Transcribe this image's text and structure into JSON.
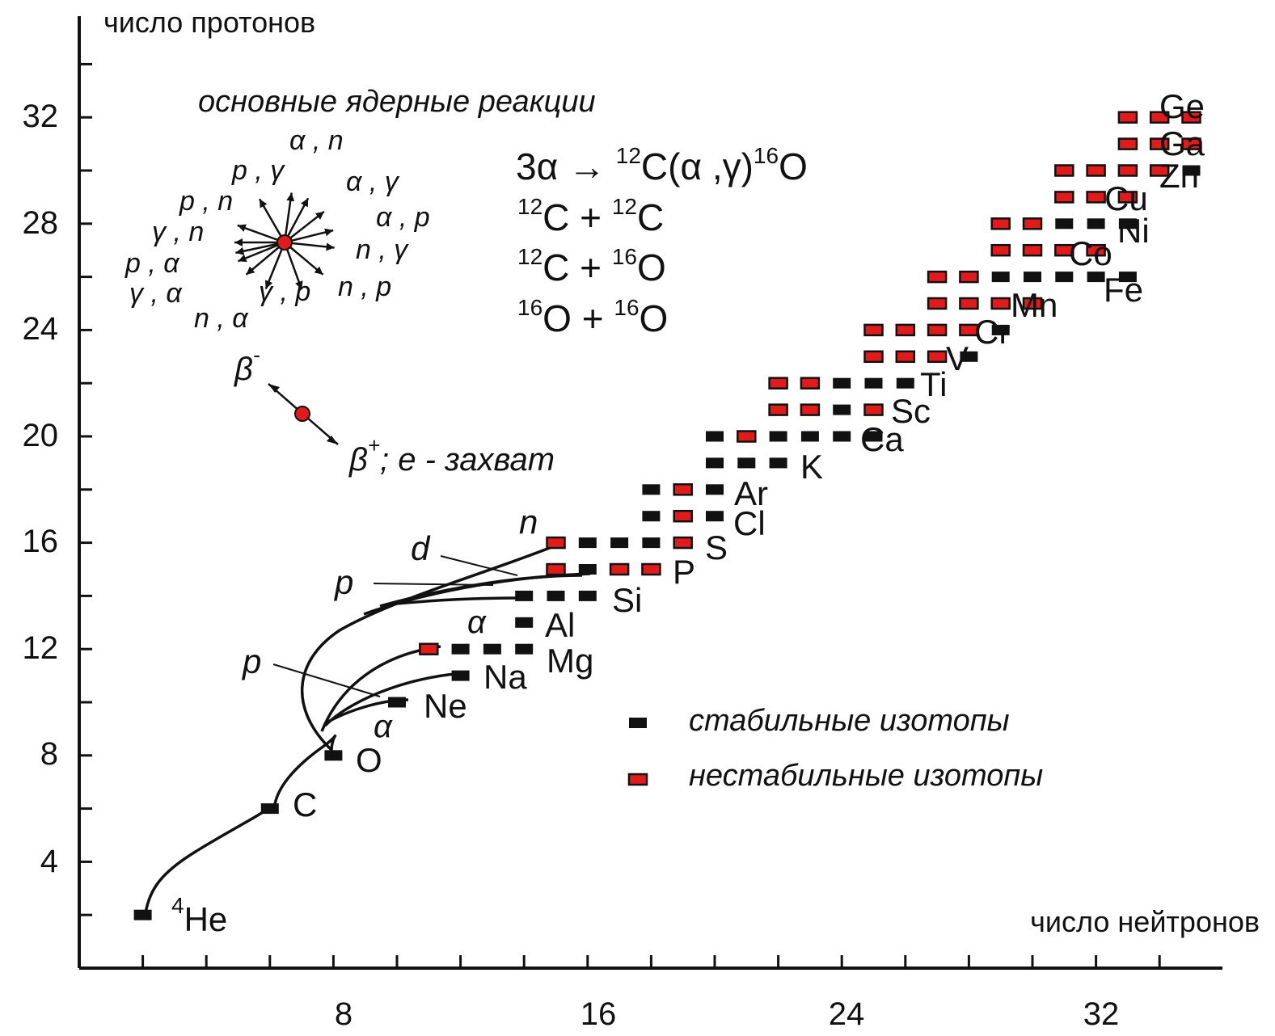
{
  "chart_data": {
    "type": "scatter",
    "title": "основные ядерные реакции",
    "ylabel": "число протонов",
    "xlabel": "число нейтронов",
    "x_ticks": [
      "8",
      "16",
      "24",
      "32"
    ],
    "y_ticks": [
      "4",
      "8",
      "12",
      "16",
      "20",
      "24",
      "28",
      "32"
    ],
    "xlim": [
      0,
      34
    ],
    "ylim": [
      0,
      34
    ],
    "legend": {
      "position": "bottom-right",
      "stable": "стабильные изотопы",
      "unstable": "нестабильные изотопы"
    },
    "colors": {
      "stable": "#111111",
      "unstable": "#e11a1a"
    },
    "elements": [
      {
        "name": "He",
        "superscript": "4",
        "Z": 2,
        "isotopes": [
          {
            "N": 2,
            "s": 1
          }
        ]
      },
      {
        "name": "C",
        "Z": 6,
        "isotopes": [
          {
            "N": 6,
            "s": 1
          }
        ]
      },
      {
        "name": "O",
        "Z": 8,
        "isotopes": [
          {
            "N": 8,
            "s": 1
          }
        ]
      },
      {
        "name": "Ne",
        "Z": 10,
        "isotopes": [
          {
            "N": 10,
            "s": 1
          }
        ]
      },
      {
        "name": "Na",
        "Z": 11,
        "isotopes": [
          {
            "N": 12,
            "s": 1
          }
        ]
      },
      {
        "name": "Mg",
        "Z": 12,
        "isotopes": [
          {
            "N": 11,
            "s": 0
          },
          {
            "N": 12,
            "s": 1
          },
          {
            "N": 13,
            "s": 1
          },
          {
            "N": 14,
            "s": 1
          }
        ]
      },
      {
        "name": "Al",
        "Z": 13,
        "isotopes": [
          {
            "N": 14,
            "s": 1
          }
        ]
      },
      {
        "name": "Si",
        "Z": 14,
        "isotopes": [
          {
            "N": 14,
            "s": 1
          },
          {
            "N": 15,
            "s": 1
          },
          {
            "N": 16,
            "s": 1
          }
        ]
      },
      {
        "name": "P",
        "Z": 15,
        "isotopes": [
          {
            "N": 15,
            "s": 0
          },
          {
            "N": 16,
            "s": 1
          },
          {
            "N": 17,
            "s": 0
          },
          {
            "N": 18,
            "s": 0
          }
        ]
      },
      {
        "name": "S",
        "Z": 16,
        "isotopes": [
          {
            "N": 15,
            "s": 0
          },
          {
            "N": 16,
            "s": 1
          },
          {
            "N": 17,
            "s": 1
          },
          {
            "N": 18,
            "s": 1
          },
          {
            "N": 19,
            "s": 0
          }
        ]
      },
      {
        "name": "Cl",
        "Z": 17,
        "isotopes": [
          {
            "N": 18,
            "s": 1
          },
          {
            "N": 19,
            "s": 0
          },
          {
            "N": 20,
            "s": 1
          }
        ]
      },
      {
        "name": "Ar",
        "Z": 18,
        "isotopes": [
          {
            "N": 18,
            "s": 1
          },
          {
            "N": 19,
            "s": 0
          },
          {
            "N": 20,
            "s": 1
          }
        ]
      },
      {
        "name": "K",
        "Z": 19,
        "isotopes": [
          {
            "N": 20,
            "s": 1
          },
          {
            "N": 21,
            "s": 1
          },
          {
            "N": 22,
            "s": 1
          }
        ]
      },
      {
        "name": "Ca",
        "Z": 20,
        "isotopes": [
          {
            "N": 20,
            "s": 1
          },
          {
            "N": 21,
            "s": 0
          },
          {
            "N": 22,
            "s": 1
          },
          {
            "N": 23,
            "s": 1
          },
          {
            "N": 24,
            "s": 1
          },
          {
            "N": 25,
            "s": 1
          }
        ]
      },
      {
        "name": "Sc",
        "Z": 21,
        "isotopes": [
          {
            "N": 22,
            "s": 0
          },
          {
            "N": 23,
            "s": 0
          },
          {
            "N": 24,
            "s": 1
          },
          {
            "N": 25,
            "s": 0
          }
        ]
      },
      {
        "name": "Ti",
        "Z": 22,
        "isotopes": [
          {
            "N": 22,
            "s": 0
          },
          {
            "N": 23,
            "s": 0
          },
          {
            "N": 24,
            "s": 1
          },
          {
            "N": 25,
            "s": 1
          },
          {
            "N": 26,
            "s": 1
          }
        ]
      },
      {
        "name": "V",
        "Z": 23,
        "isotopes": [
          {
            "N": 25,
            "s": 0
          },
          {
            "N": 26,
            "s": 0
          },
          {
            "N": 27,
            "s": 0
          },
          {
            "N": 28,
            "s": 1
          }
        ]
      },
      {
        "name": "Cr",
        "Z": 24,
        "isotopes": [
          {
            "N": 25,
            "s": 0
          },
          {
            "N": 26,
            "s": 0
          },
          {
            "N": 27,
            "s": 0
          },
          {
            "N": 28,
            "s": 0
          },
          {
            "N": 29,
            "s": 1
          }
        ]
      },
      {
        "name": "Mn",
        "Z": 25,
        "isotopes": [
          {
            "N": 27,
            "s": 0
          },
          {
            "N": 28,
            "s": 0
          },
          {
            "N": 29,
            "s": 0
          },
          {
            "N": 30,
            "s": 0
          }
        ]
      },
      {
        "name": "Fe",
        "Z": 26,
        "isotopes": [
          {
            "N": 27,
            "s": 0
          },
          {
            "N": 28,
            "s": 0
          },
          {
            "N": 29,
            "s": 1
          },
          {
            "N": 30,
            "s": 1
          },
          {
            "N": 31,
            "s": 1
          },
          {
            "N": 32,
            "s": 1
          },
          {
            "N": 33,
            "s": 1
          }
        ]
      },
      {
        "name": "Co",
        "Z": 27,
        "isotopes": [
          {
            "N": 29,
            "s": 0
          },
          {
            "N": 30,
            "s": 0
          },
          {
            "N": 31,
            "s": 0
          },
          {
            "N": 32,
            "s": 0
          }
        ]
      },
      {
        "name": "Ni",
        "Z": 28,
        "isotopes": [
          {
            "N": 29,
            "s": 0
          },
          {
            "N": 30,
            "s": 0
          },
          {
            "N": 31,
            "s": 1
          },
          {
            "N": 32,
            "s": 1
          },
          {
            "N": 33,
            "s": 1
          }
        ]
      },
      {
        "name": "Cu",
        "Z": 29,
        "isotopes": [
          {
            "N": 31,
            "s": 0
          },
          {
            "N": 32,
            "s": 0
          },
          {
            "N": 33,
            "s": 0
          }
        ]
      },
      {
        "name": "Zn",
        "Z": 30,
        "isotopes": [
          {
            "N": 31,
            "s": 0
          },
          {
            "N": 32,
            "s": 0
          },
          {
            "N": 33,
            "s": 0
          },
          {
            "N": 34,
            "s": 0
          },
          {
            "N": 35,
            "s": 1
          }
        ]
      },
      {
        "name": "Ga",
        "Z": 31,
        "isotopes": [
          {
            "N": 33,
            "s": 0
          },
          {
            "N": 34,
            "s": 0
          },
          {
            "N": 35,
            "s": 0
          }
        ]
      },
      {
        "name": "Ge",
        "Z": 32,
        "isotopes": [
          {
            "N": 33,
            "s": 0
          },
          {
            "N": 34,
            "s": 0
          },
          {
            "N": 35,
            "s": 0
          }
        ]
      }
    ],
    "path_labels": [
      "n",
      "d",
      "p",
      "α",
      "p",
      "α"
    ],
    "reactions_legend": {
      "labels": [
        "α , n",
        "p , γ",
        "α , γ",
        "p , n",
        "α , p",
        "γ , n",
        "n , γ",
        "p , α",
        "γ , α",
        "γ , p",
        "n , p",
        "n , α"
      ],
      "beta_minus": "β",
      "beta_minus_sup": "-",
      "beta_plus": "β",
      "beta_plus_sup": "+",
      "beta_plus_rest": "; e - захват"
    },
    "reactions": [
      {
        "parts": [
          "3α ",
          "→",
          " ",
          "12",
          "C(α ,γ)",
          "16",
          "O"
        ]
      },
      {
        "parts": [
          "12",
          "C + ",
          "12",
          "C"
        ]
      },
      {
        "parts": [
          "12",
          "C + ",
          "16",
          "O"
        ]
      },
      {
        "parts": [
          "16",
          "O + ",
          "16",
          "O"
        ]
      }
    ]
  }
}
